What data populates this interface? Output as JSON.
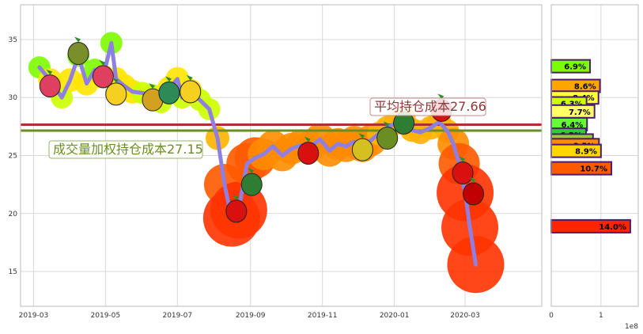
{
  "chart_data": {
    "type": "line",
    "xlabel": "",
    "ylabel": "",
    "ylim": [
      12,
      38
    ],
    "xticks": [
      "2019-03",
      "2019-05",
      "2019-07",
      "2019-09",
      "2019-11",
      "2020-01",
      "2020-03"
    ],
    "yticks": [
      15,
      20,
      25,
      30,
      35
    ],
    "grid": true,
    "series": [
      {
        "values": [
          [
            "2019-03-06",
            32.6
          ],
          [
            "2019-03-15",
            31.5
          ],
          [
            "2019-03-25",
            30.0
          ],
          [
            "2019-04-01",
            31.5
          ],
          [
            "2019-04-08",
            33.6
          ],
          [
            "2019-04-15",
            31.2
          ],
          [
            "2019-04-22",
            32.4
          ],
          [
            "2019-04-29",
            31.8
          ],
          [
            "2019-05-06",
            34.7
          ],
          [
            "2019-05-10",
            31.6
          ],
          [
            "2019-05-17",
            31.0
          ],
          [
            "2019-05-24",
            30.5
          ],
          [
            "2019-06-01",
            30.4
          ],
          [
            "2019-06-10",
            30.2
          ],
          [
            "2019-06-17",
            29.6
          ],
          [
            "2019-06-24",
            30.8
          ],
          [
            "2019-07-01",
            31.6
          ],
          [
            "2019-07-05",
            30.0
          ],
          [
            "2019-07-12",
            30.6
          ],
          [
            "2019-07-20",
            29.8
          ],
          [
            "2019-07-28",
            29.0
          ],
          [
            "2019-08-04",
            26.5
          ],
          [
            "2019-08-10",
            22.5
          ],
          [
            "2019-08-16",
            19.6
          ],
          [
            "2019-08-22",
            20.3
          ],
          [
            "2019-08-29",
            24.3
          ],
          [
            "2019-09-05",
            24.8
          ],
          [
            "2019-09-12",
            25.1
          ],
          [
            "2019-09-20",
            25.8
          ],
          [
            "2019-09-28",
            25.0
          ],
          [
            "2019-10-06",
            25.6
          ],
          [
            "2019-10-14",
            25.9
          ],
          [
            "2019-10-22",
            25.8
          ],
          [
            "2019-10-30",
            26.4
          ],
          [
            "2019-11-07",
            25.4
          ],
          [
            "2019-11-14",
            26.0
          ],
          [
            "2019-11-21",
            25.8
          ],
          [
            "2019-11-28",
            26.2
          ],
          [
            "2019-12-05",
            25.8
          ],
          [
            "2019-12-12",
            26.3
          ],
          [
            "2019-12-19",
            26.9
          ],
          [
            "2019-12-26",
            27.4
          ],
          [
            "2020-01-02",
            27.8
          ],
          [
            "2020-01-09",
            28.2
          ],
          [
            "2020-01-16",
            27.2
          ],
          [
            "2020-01-23",
            27.0
          ],
          [
            "2020-02-01",
            27.4
          ],
          [
            "2020-02-08",
            27.9
          ],
          [
            "2020-02-15",
            27.1
          ],
          [
            "2020-02-20",
            26.0
          ],
          [
            "2020-02-25",
            24.3
          ],
          [
            "2020-03-01",
            21.8
          ],
          [
            "2020-03-05",
            18.8
          ],
          [
            "2020-03-10",
            15.6
          ]
        ],
        "color": "#8f7fe0"
      }
    ],
    "hlines": [
      {
        "label": "成交量加权持仓成本27.15",
        "value": 27.15,
        "color": "#6b8e23"
      },
      {
        "label": "平均持仓成本27.66",
        "value": 27.66,
        "color": "#b03030"
      }
    ],
    "side_panel": {
      "type": "barh",
      "xlim": [
        0,
        1.75
      ],
      "xticks": [
        "0",
        "1"
      ],
      "exponent": "1e8",
      "bars": [
        {
          "price": 32.7,
          "value": 0.78,
          "label": "6.9%",
          "color": "#7cfc00"
        },
        {
          "price": 31.0,
          "value": 0.98,
          "label": "8.6%",
          "color": "#ffa500"
        },
        {
          "price": 30.0,
          "value": 0.95,
          "label": "8.4%",
          "color": "#ffff33"
        },
        {
          "price": 29.5,
          "value": 0.71,
          "label": "6.3%",
          "color": "#ccff00"
        },
        {
          "price": 28.8,
          "value": 0.87,
          "label": "7.7%",
          "color": "#ffff66"
        },
        {
          "price": 27.7,
          "value": 0.72,
          "label": "6.4%",
          "color": "#66ff33"
        },
        {
          "price": 26.8,
          "value": 0.7,
          "label": "6.2%",
          "color": "#32cd32"
        },
        {
          "price": 26.3,
          "value": 0.84,
          "label": "7.4%",
          "color": "#9acd32"
        },
        {
          "price": 25.9,
          "value": 0.96,
          "label": "8.5%",
          "color": "#ff8c00"
        },
        {
          "price": 25.4,
          "value": 1.0,
          "label": "8.9%",
          "color": "#ffd700"
        },
        {
          "price": 23.9,
          "value": 1.21,
          "label": "10.7%",
          "color": "#ff5a00"
        },
        {
          "price": 18.9,
          "value": 1.59,
          "label": "14.0%",
          "color": "#ff2500"
        }
      ]
    }
  }
}
